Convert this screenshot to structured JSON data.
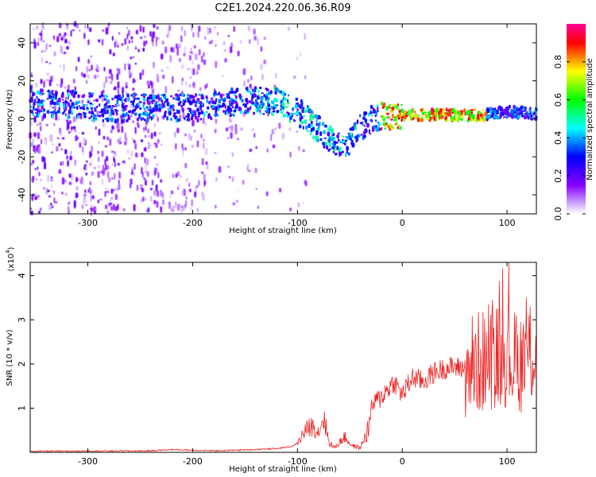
{
  "title": "C2E1.2024.220.06.36.R09",
  "chart_data": [
    {
      "type": "heatmap",
      "xlabel": "Height of straight line (km)",
      "ylabel": "Frequency (Hz)",
      "xlim": [
        -355,
        128
      ],
      "ylim": [
        -50,
        50
      ],
      "xticks": [
        -300,
        -200,
        -100,
        0,
        100
      ],
      "yticks": [
        -40,
        -20,
        0,
        20,
        40
      ],
      "colorbar": {
        "label": "Normalized spectral amplitude",
        "range": [
          0,
          1
        ],
        "ticks": [
          "0.0",
          "0.2",
          "0.4",
          "0.6",
          "0.8"
        ],
        "colors": [
          "#ffffff",
          "#8800ff",
          "#0000ff",
          "#00ffff",
          "#00ff00",
          "#ffff00",
          "#ff0000",
          "#ff00aa"
        ]
      },
      "ridge": [
        {
          "x": -320,
          "y": 8
        },
        {
          "x": -280,
          "y": 5
        },
        {
          "x": -260,
          "y": 6
        },
        {
          "x": -220,
          "y": 6
        },
        {
          "x": -185,
          "y": 6
        },
        {
          "x": -150,
          "y": 10
        },
        {
          "x": -120,
          "y": 9
        },
        {
          "x": -95,
          "y": 2
        },
        {
          "x": -75,
          "y": -8
        },
        {
          "x": -55,
          "y": -16
        },
        {
          "x": -45,
          "y": -6
        },
        {
          "x": -25,
          "y": 1
        },
        {
          "x": 0,
          "y": 2
        },
        {
          "x": 50,
          "y": 2
        },
        {
          "x": 80,
          "y": 2
        },
        {
          "x": 100,
          "y": 4
        },
        {
          "x": 125,
          "y": 3
        }
      ]
    },
    {
      "type": "line",
      "xlabel": "Height of straight line (km)",
      "ylabel": "SNR (10 * v/v)",
      "scale_label": "(x10",
      "scale_exp": "4",
      "scale_close": ")",
      "xlim": [
        -355,
        128
      ],
      "ylim": [
        0,
        4.3
      ],
      "xticks": [
        -300,
        -200,
        -100,
        0,
        100
      ],
      "yticks": [
        1,
        2,
        3,
        4
      ],
      "series": [
        {
          "color": "#ee2222",
          "envelope": [
            {
              "x": -355,
              "y": 0.01
            },
            {
              "x": -240,
              "y": 0.02
            },
            {
              "x": -220,
              "y": 0.05
            },
            {
              "x": -180,
              "y": 0.02
            },
            {
              "x": -150,
              "y": 0.04
            },
            {
              "x": -120,
              "y": 0.07
            },
            {
              "x": -105,
              "y": 0.12
            },
            {
              "x": -100,
              "y": 0.2
            },
            {
              "x": -95,
              "y": 0.4
            },
            {
              "x": -90,
              "y": 0.55
            },
            {
              "x": -85,
              "y": 0.6
            },
            {
              "x": -80,
              "y": 0.45
            },
            {
              "x": -75,
              "y": 0.8
            },
            {
              "x": -70,
              "y": 0.25
            },
            {
              "x": -65,
              "y": 0.1
            },
            {
              "x": -55,
              "y": 0.35
            },
            {
              "x": -48,
              "y": 0.15
            },
            {
              "x": -40,
              "y": 0.1
            },
            {
              "x": -33,
              "y": 0.5
            },
            {
              "x": -28,
              "y": 1.1
            },
            {
              "x": -22,
              "y": 1.2
            },
            {
              "x": -15,
              "y": 1.4
            },
            {
              "x": -8,
              "y": 1.6
            },
            {
              "x": 0,
              "y": 1.3
            },
            {
              "x": 10,
              "y": 1.7
            },
            {
              "x": 20,
              "y": 1.6
            },
            {
              "x": 30,
              "y": 1.8
            },
            {
              "x": 40,
              "y": 1.9
            },
            {
              "x": 50,
              "y": 1.93
            },
            {
              "x": 60,
              "y": 1.9
            },
            {
              "x": 70,
              "y": 2.0
            },
            {
              "x": 80,
              "y": 2.1
            },
            {
              "x": 90,
              "y": 2.2
            },
            {
              "x": 100,
              "y": 2.2
            },
            {
              "x": 110,
              "y": 2.0
            },
            {
              "x": 120,
              "y": 2.2
            },
            {
              "x": 128,
              "y": 2.3
            }
          ]
        }
      ]
    }
  ]
}
